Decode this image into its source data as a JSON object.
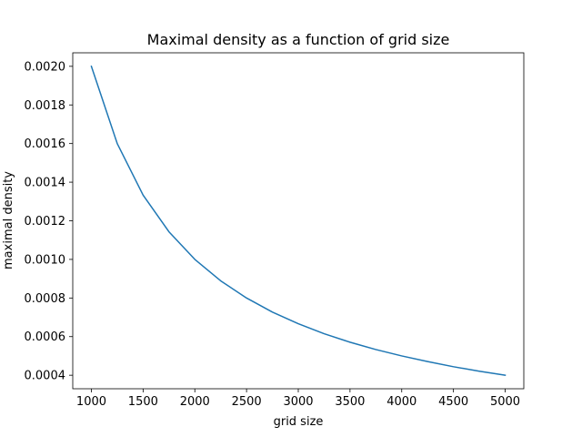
{
  "chart_data": {
    "type": "line",
    "title": "Maximal density as a function of grid size",
    "xlabel": "grid size",
    "ylabel": "maximal density",
    "xlim": [
      820,
      5180
    ],
    "ylim": [
      0.00033,
      0.00207
    ],
    "grid": false,
    "legend": "none",
    "x_ticks": [
      1000,
      1500,
      2000,
      2500,
      3000,
      3500,
      4000,
      4500,
      5000
    ],
    "x_tick_labels": [
      "1000",
      "1500",
      "2000",
      "2500",
      "3000",
      "3500",
      "4000",
      "4500",
      "5000"
    ],
    "y_ticks": [
      0.0004,
      0.0006,
      0.0008,
      0.001,
      0.0012,
      0.0014,
      0.0016,
      0.0018,
      0.002
    ],
    "y_tick_labels": [
      "0.0004",
      "0.0006",
      "0.0008",
      "0.0010",
      "0.0012",
      "0.0014",
      "0.0016",
      "0.0018",
      "0.0020"
    ],
    "series": [
      {
        "color": "#1f77b4",
        "x": [
          1000,
          1250,
          1500,
          1750,
          2000,
          2250,
          2500,
          2750,
          3000,
          3250,
          3500,
          3750,
          4000,
          4250,
          4500,
          4750,
          5000
        ],
        "y": [
          0.002,
          0.0016,
          0.001333,
          0.001143,
          0.001,
          0.000889,
          0.0008,
          0.000727,
          0.000667,
          0.000615,
          0.000571,
          0.000533,
          0.0005,
          0.000471,
          0.000444,
          0.000421,
          0.0004
        ]
      }
    ]
  }
}
